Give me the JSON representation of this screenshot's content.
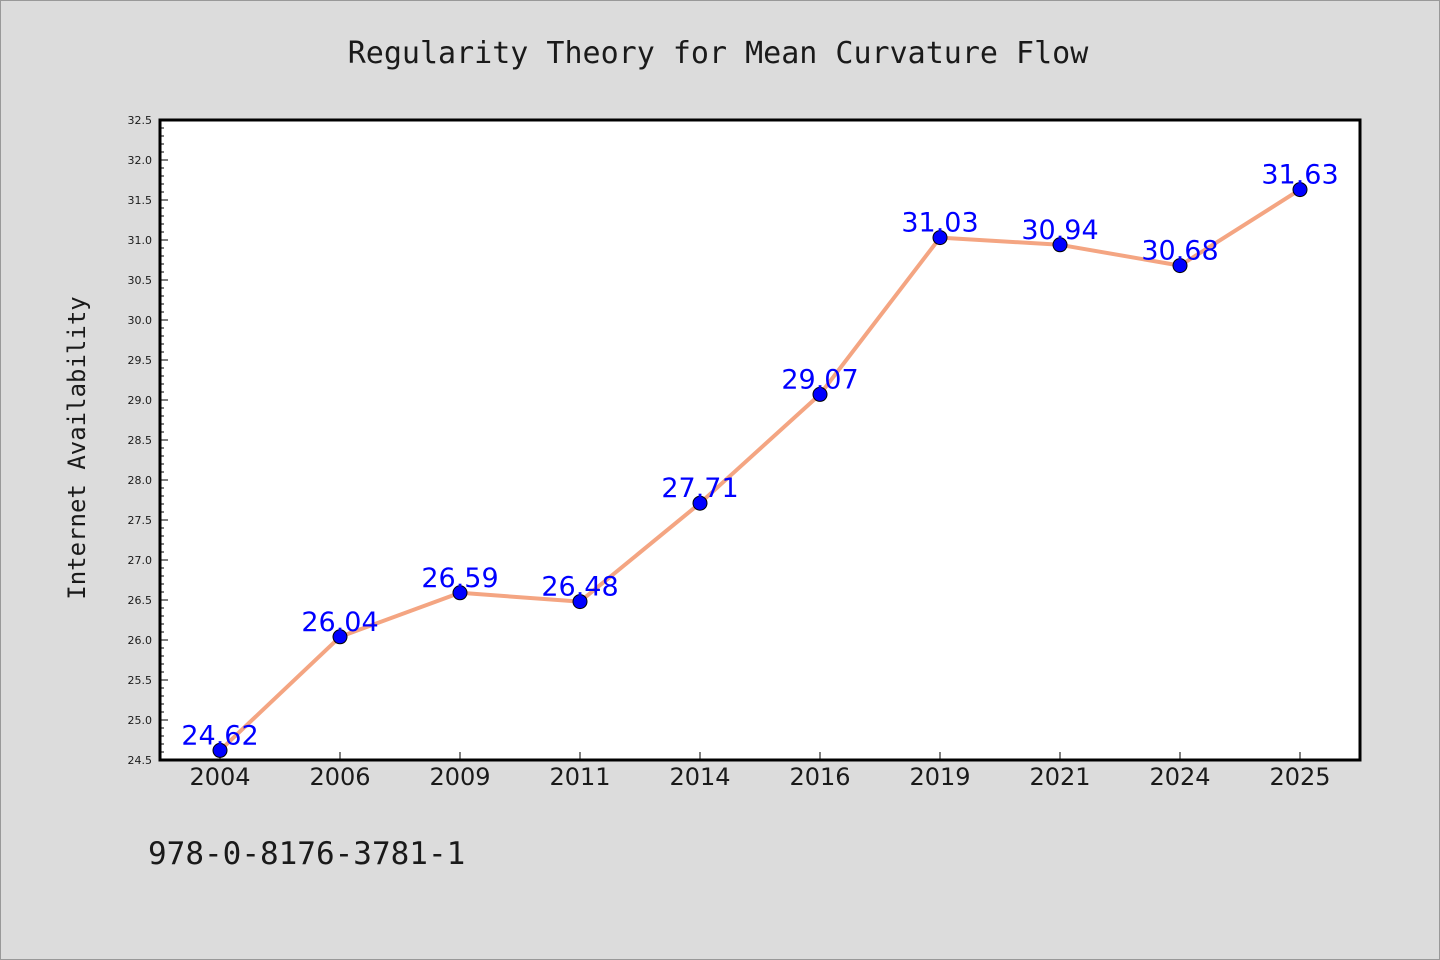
{
  "chart_data": {
    "type": "line",
    "title": "Regularity Theory for Mean Curvature Flow",
    "xlabel": "",
    "ylabel": "Internet Availability",
    "categories": [
      "2004",
      "2006",
      "2009",
      "2011",
      "2014",
      "2016",
      "2019",
      "2021",
      "2024",
      "2025"
    ],
    "series": [
      {
        "values": [
          24.62,
          26.04,
          26.59,
          26.48,
          27.71,
          29.07,
          31.03,
          30.94,
          30.68,
          31.63
        ]
      }
    ],
    "data_labels": [
      "24.62",
      "26.04",
      "26.59",
      "26.48",
      "27.71",
      "29.07",
      "31.03",
      "30.94",
      "30.68",
      "31.63"
    ],
    "ylim": [
      24.5,
      32.5
    ],
    "yticks": [
      "24.5",
      "25.0",
      "25.5",
      "26.0",
      "26.5",
      "27.0",
      "27.5",
      "28.0",
      "28.5",
      "29.0",
      "29.5",
      "30.0",
      "30.5",
      "31.0",
      "31.5",
      "32.0",
      "32.5"
    ],
    "grid": false,
    "legend": "none",
    "colors": {
      "line": "#f4a582",
      "marker": "#0000ff",
      "data_label": "#0000ff",
      "background": "#dcdcdc",
      "plot_background": "#ffffff"
    }
  },
  "footer_text": "978-0-8176-3781-1"
}
